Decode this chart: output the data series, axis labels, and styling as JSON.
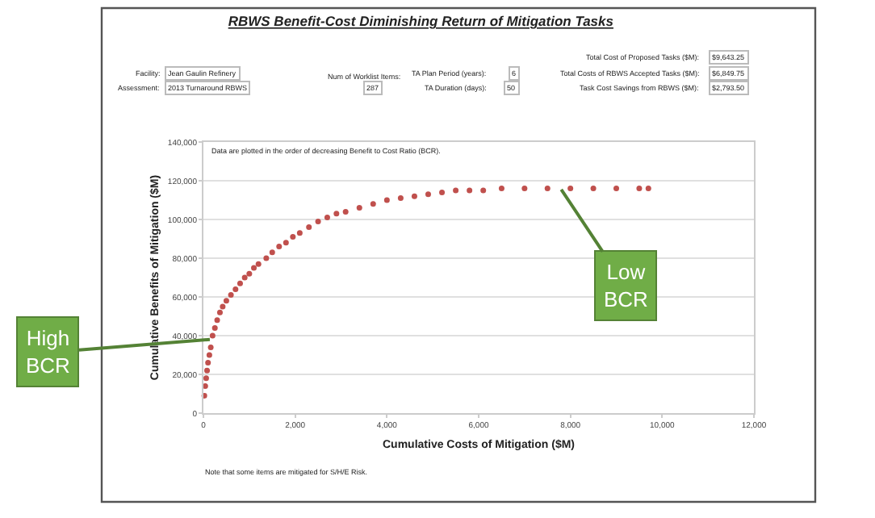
{
  "chart_data": {
    "type": "scatter",
    "title": "RBWS Benefit-Cost Diminishing Return of Mitigation Tasks",
    "xlabel": "Cumulative Costs of Mitigation ($M)",
    "ylabel": "Cumulative Benefits of Mitigation ($M)",
    "x": [
      20,
      40,
      60,
      80,
      100,
      130,
      160,
      200,
      250,
      300,
      360,
      420,
      500,
      600,
      700,
      800,
      900,
      1000,
      1100,
      1200,
      1370,
      1500,
      1650,
      1800,
      1950,
      2100,
      2300,
      2500,
      2700,
      2900,
      3100,
      3400,
      3700,
      4000,
      4300,
      4600,
      4900,
      5200,
      5500,
      5800,
      6100,
      6500,
      7000,
      7500,
      8000,
      8500,
      9000,
      9500,
      9700
    ],
    "series": [
      {
        "color": "#c0504d",
        "values": [
          9000,
          14000,
          18000,
          22000,
          26000,
          30000,
          34000,
          40000,
          44000,
          48000,
          52000,
          55000,
          58000,
          61000,
          64000,
          67000,
          70000,
          72000,
          75000,
          77000,
          80000,
          83000,
          86000,
          88000,
          91000,
          93000,
          96000,
          99000,
          101000,
          103000,
          104000,
          106000,
          108000,
          110000,
          111000,
          112000,
          113000,
          114000,
          115000,
          115000,
          115000,
          116000,
          116000,
          116000,
          116000,
          116000,
          116000,
          116000,
          116000
        ]
      }
    ],
    "xlim": [
      0,
      12000
    ],
    "xticks": [
      {
        "value": 0,
        "label": "0"
      },
      {
        "value": 2000,
        "label": "2,000"
      },
      {
        "value": 4000,
        "label": "4,000"
      },
      {
        "value": 6000,
        "label": "6,000"
      },
      {
        "value": 8000,
        "label": "8,000"
      },
      {
        "value": 10000,
        "label": "10,000"
      },
      {
        "value": 12000,
        "label": "12,000"
      }
    ],
    "ylim": [
      0,
      140000
    ],
    "yticks": [
      {
        "value": 0,
        "label": "0"
      },
      {
        "value": 20000,
        "label": "20,000"
      },
      {
        "value": 40000,
        "label": "40,000"
      },
      {
        "value": 60000,
        "label": "60,000"
      },
      {
        "value": 80000,
        "label": "80,000"
      },
      {
        "value": 100000,
        "label": "100,000"
      },
      {
        "value": 120000,
        "label": "120,000"
      },
      {
        "value": 140000,
        "label": "140,000"
      }
    ],
    "grid": "y",
    "legend": false,
    "marker": "circle",
    "annotations": [
      "Facility:",
      "Jean Gaulin Refinery",
      "Assessment:",
      "2013 Turnaround RBWS",
      "Num of Worklist Items:",
      "287",
      "TA Plan Period (years):",
      "6",
      "TA Duration (days):",
      "50",
      "Total Cost of Proposed Tasks ($M):",
      "$9,643.25",
      "Total Costs of RBWS Accepted Tasks ($M):",
      "$6,849.75",
      "Task Cost Savings from RBWS ($M):",
      "$2,793.50",
      "Data are plotted in the order of decreasing Benefit to Cost Ratio (BCR).",
      "Note that some items are mitigated for S/H/E Risk.",
      {
        "text": "High\nBCR",
        "x": 140,
        "y": 38000
      },
      {
        "text": "Low\nBCR",
        "x": 7800,
        "y": 115500
      }
    ]
  }
}
